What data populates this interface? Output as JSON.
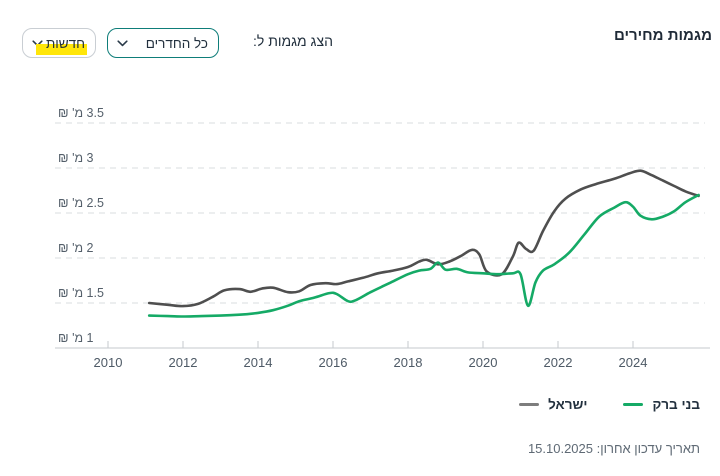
{
  "title": "מגמות מחירים",
  "controls": {
    "show_trends_label": "הצג מגמות ל:",
    "rooms_select": {
      "value": "כל החדרים",
      "icon": "chevron-down-icon",
      "border_color": "#0e7d79"
    },
    "news_select": {
      "value": "חדשות",
      "icon": "chevron-down-icon",
      "highlight_color": "#ffe60a"
    }
  },
  "chart_data": {
    "type": "line",
    "title": "מגמות מחירים",
    "unit": "מ' ₪",
    "grid": "dashed-horizontal",
    "legend_position": "bottom-right",
    "x_axis": {
      "min": 2010,
      "max": 2025.9,
      "ticks": [
        2010,
        2012,
        2014,
        2016,
        2018,
        2020,
        2022,
        2024
      ]
    },
    "y_axis": {
      "range": [
        1,
        3.75
      ],
      "ticks": [
        {
          "value": 3.5,
          "label": "3.5 מ' ₪"
        },
        {
          "value": 3,
          "label": "3 מ' ₪"
        },
        {
          "value": 2.5,
          "label": "2.5 מ' ₪"
        },
        {
          "value": 2,
          "label": "2 מ' ₪"
        },
        {
          "value": 1.5,
          "label": "1.5 מ' ₪"
        },
        {
          "value": 1,
          "label": "1 מ' ₪"
        }
      ]
    },
    "series": [
      {
        "name": "ישראל",
        "color": "#4f4f4f",
        "points": [
          [
            2011.1,
            1.5
          ],
          [
            2011.6,
            1.48
          ],
          [
            2012.0,
            1.465
          ],
          [
            2012.4,
            1.49
          ],
          [
            2012.8,
            1.57
          ],
          [
            2013.1,
            1.64
          ],
          [
            2013.5,
            1.655
          ],
          [
            2013.8,
            1.625
          ],
          [
            2014.1,
            1.66
          ],
          [
            2014.4,
            1.67
          ],
          [
            2014.8,
            1.62
          ],
          [
            2015.1,
            1.63
          ],
          [
            2015.4,
            1.7
          ],
          [
            2015.8,
            1.72
          ],
          [
            2016.1,
            1.71
          ],
          [
            2016.4,
            1.74
          ],
          [
            2016.8,
            1.78
          ],
          [
            2017.2,
            1.83
          ],
          [
            2017.6,
            1.86
          ],
          [
            2018.0,
            1.9
          ],
          [
            2018.3,
            1.96
          ],
          [
            2018.5,
            1.98
          ],
          [
            2018.8,
            1.93
          ],
          [
            2019.1,
            1.96
          ],
          [
            2019.4,
            2.02
          ],
          [
            2019.7,
            2.09
          ],
          [
            2019.9,
            2.04
          ],
          [
            2020.1,
            1.85
          ],
          [
            2020.5,
            1.82
          ],
          [
            2020.8,
            2.02
          ],
          [
            2020.95,
            2.17
          ],
          [
            2021.15,
            2.1
          ],
          [
            2021.35,
            2.08
          ],
          [
            2021.6,
            2.3
          ],
          [
            2021.9,
            2.52
          ],
          [
            2022.2,
            2.66
          ],
          [
            2022.6,
            2.76
          ],
          [
            2023.0,
            2.82
          ],
          [
            2023.5,
            2.88
          ],
          [
            2023.9,
            2.94
          ],
          [
            2024.2,
            2.97
          ],
          [
            2024.5,
            2.92
          ],
          [
            2024.8,
            2.86
          ],
          [
            2025.1,
            2.8
          ],
          [
            2025.4,
            2.74
          ],
          [
            2025.75,
            2.69
          ]
        ]
      },
      {
        "name": "בני ברק",
        "color": "#15aa66",
        "points": [
          [
            2011.1,
            1.36
          ],
          [
            2011.6,
            1.355
          ],
          [
            2012.0,
            1.35
          ],
          [
            2012.5,
            1.355
          ],
          [
            2013.0,
            1.36
          ],
          [
            2013.5,
            1.37
          ],
          [
            2014.0,
            1.39
          ],
          [
            2014.4,
            1.42
          ],
          [
            2014.8,
            1.47
          ],
          [
            2015.1,
            1.52
          ],
          [
            2015.5,
            1.56
          ],
          [
            2015.9,
            1.61
          ],
          [
            2016.1,
            1.6
          ],
          [
            2016.4,
            1.52
          ],
          [
            2016.6,
            1.53
          ],
          [
            2017.0,
            1.62
          ],
          [
            2017.5,
            1.72
          ],
          [
            2018.0,
            1.82
          ],
          [
            2018.3,
            1.86
          ],
          [
            2018.6,
            1.88
          ],
          [
            2018.8,
            1.95
          ],
          [
            2019.0,
            1.87
          ],
          [
            2019.3,
            1.88
          ],
          [
            2019.6,
            1.84
          ],
          [
            2020.0,
            1.83
          ],
          [
            2020.4,
            1.82
          ],
          [
            2020.8,
            1.83
          ],
          [
            2021.0,
            1.82
          ],
          [
            2021.2,
            1.47
          ],
          [
            2021.4,
            1.73
          ],
          [
            2021.6,
            1.86
          ],
          [
            2021.9,
            1.93
          ],
          [
            2022.3,
            2.06
          ],
          [
            2022.7,
            2.26
          ],
          [
            2023.1,
            2.46
          ],
          [
            2023.5,
            2.56
          ],
          [
            2023.8,
            2.62
          ],
          [
            2024.0,
            2.57
          ],
          [
            2024.2,
            2.47
          ],
          [
            2024.5,
            2.43
          ],
          [
            2024.8,
            2.46
          ],
          [
            2025.1,
            2.52
          ],
          [
            2025.4,
            2.62
          ],
          [
            2025.75,
            2.7
          ]
        ]
      }
    ]
  },
  "legend": {
    "items": [
      {
        "label": "ישראל",
        "dash_color": "#7d7d7d"
      },
      {
        "label": "בני ברק",
        "dash_color": "#15aa66"
      }
    ]
  },
  "footer": {
    "last_update": "תאריך עדכון אחרון: 15.10.2025"
  },
  "colors": {
    "accent_teal": "#0e7d79",
    "highlight_yellow": "#ffe60a",
    "series_israel": "#4f4f4f",
    "series_bnei_brak": "#15aa66",
    "gridline": "#d9dcdf",
    "axis_line": "#c6cacd"
  }
}
